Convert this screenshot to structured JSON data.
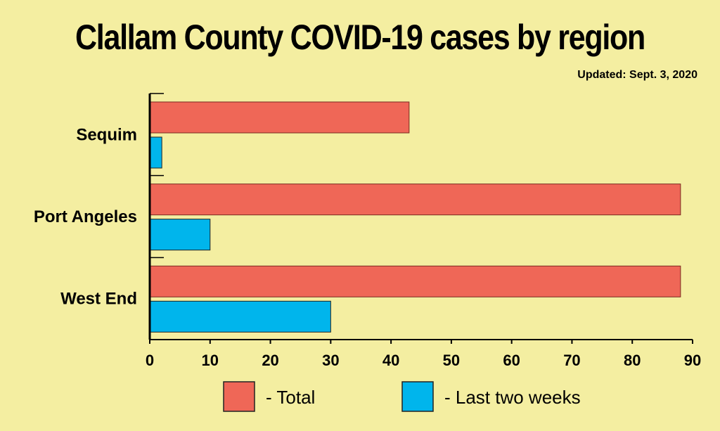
{
  "chart_data": {
    "type": "bar",
    "orientation": "horizontal",
    "title": "Clallam County COVID-19 cases by region",
    "subtitle": "Updated: Sept. 3, 2020",
    "categories": [
      "Sequim",
      "Port Angeles",
      "West End"
    ],
    "series": [
      {
        "name": "- Total",
        "color": "#ef6757",
        "values": [
          43,
          88,
          88
        ]
      },
      {
        "name": "- Last two weeks",
        "color": "#00b5ec",
        "values": [
          2,
          10,
          30
        ]
      }
    ],
    "xlim": [
      0,
      90
    ],
    "xticks": [
      "0",
      "10",
      "20",
      "30",
      "40",
      "50",
      "60",
      "70",
      "80",
      "90"
    ],
    "legend": "bottom"
  }
}
